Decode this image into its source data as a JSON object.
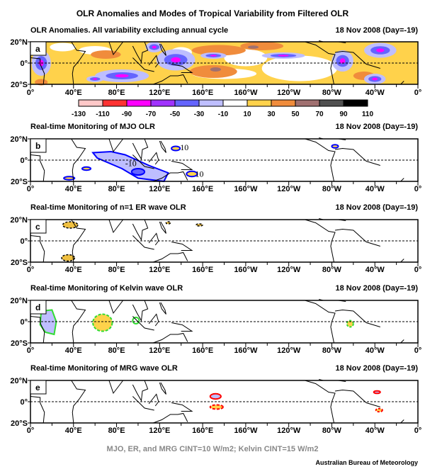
{
  "title": "OLR Anomalies and Modes of Tropical Variability from Filtered OLR",
  "date": "18 Nov 2008 (Day=-19)",
  "lat_labels": [
    "20°N",
    "0°",
    "20°S"
  ],
  "lon_labels": [
    "0°",
    "40°E",
    "80°E",
    "120°E",
    "160°E",
    "160°W",
    "120°W",
    "80°W",
    "40°W",
    "0°"
  ],
  "colorbar": {
    "levels": [
      "-130",
      "-110",
      "-90",
      "-70",
      "-50",
      "-30",
      "-10",
      "10",
      "30",
      "50",
      "70",
      "90",
      "110"
    ],
    "colors": [
      "#ffc8c8",
      "#ff3232",
      "#ff00ff",
      "#a032ff",
      "#6464ff",
      "#bebeff",
      "#ffffff",
      "#ffd24b",
      "#f08c3c",
      "#a07070",
      "#505050",
      "#000000"
    ]
  },
  "panels": [
    {
      "letter": "a",
      "title": "OLR Anomalies.  All variability excluding annual cycle"
    },
    {
      "letter": "b",
      "title": "Real-time Monitoring of MJO OLR",
      "contour_labels": [
        "-10",
        "10",
        "10"
      ]
    },
    {
      "letter": "c",
      "title": "Real-time Monitoring of n=1 ER wave OLR"
    },
    {
      "letter": "d",
      "title": "Real-time Monitoring of Kelvin wave OLR"
    },
    {
      "letter": "e",
      "title": "Real-time Monitoring of MRG wave OLR"
    }
  ],
  "footnote": "MJO, ER, and MRG CINT=10 W/m2;  Kelvin CINT=15 W/m2",
  "credit": "Australian Bureau of Meteorology"
}
